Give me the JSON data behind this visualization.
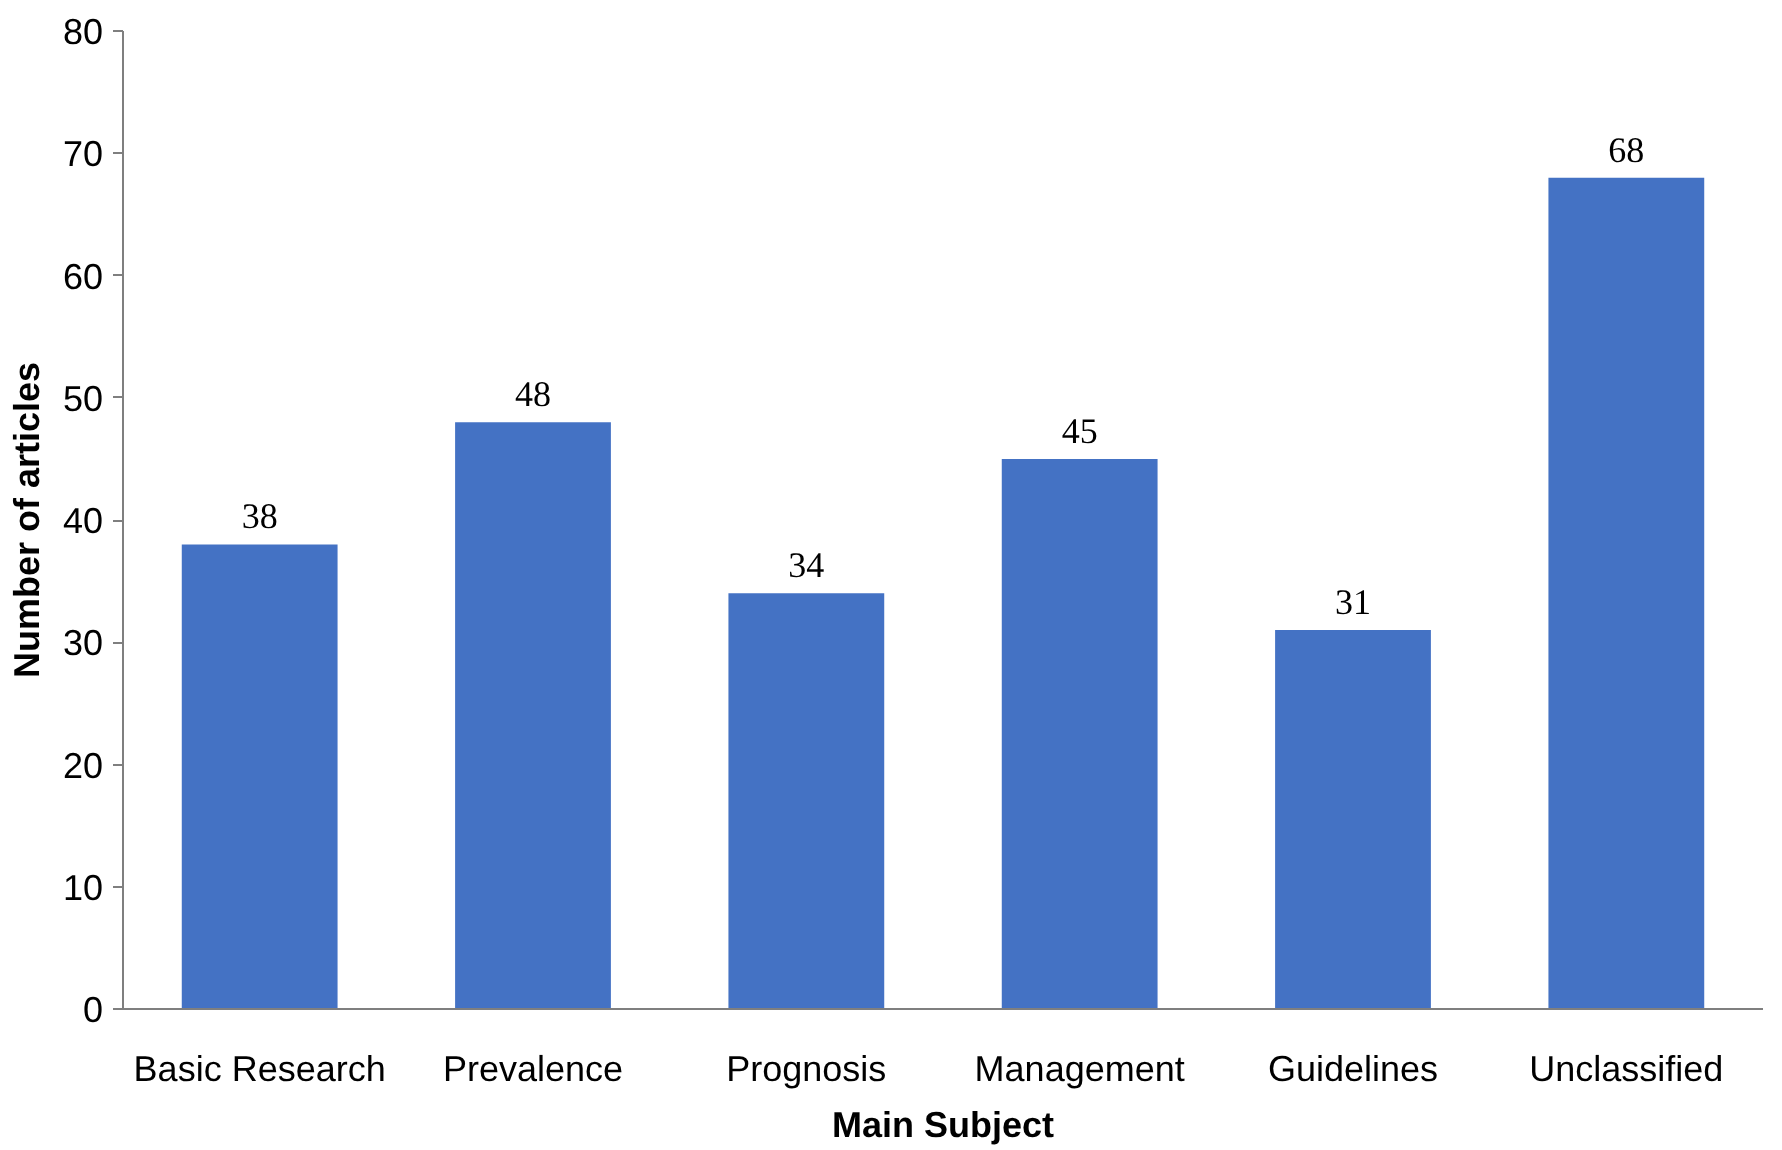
{
  "chart_data": {
    "type": "bar",
    "xlabel": "Main Subject",
    "ylabel": "Number of articles",
    "categories": [
      "Basic Research",
      "Prevalence",
      "Prognosis",
      "Management",
      "Guidelines",
      "Unclassified"
    ],
    "values": [
      38,
      48,
      34,
      45,
      31,
      68
    ],
    "color": "#4472c4",
    "ylim": [
      0,
      80
    ],
    "yticks": [
      0,
      10,
      20,
      30,
      40,
      50,
      60,
      70,
      80
    ],
    "grid": false,
    "data_labels": true
  }
}
